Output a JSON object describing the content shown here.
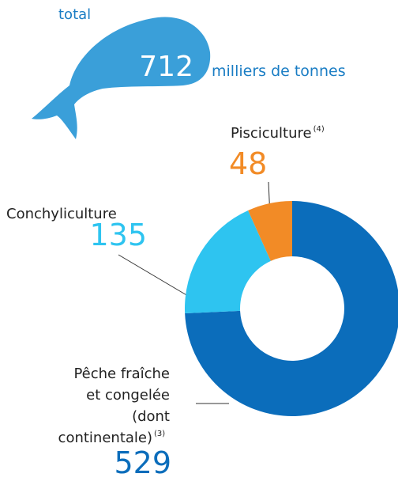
{
  "chart_data": {
    "type": "donut",
    "title": "total",
    "total": 712,
    "unit": "milliers de tonnes",
    "segments": [
      {
        "name": [
          "Pêche fraîche",
          "et congelée",
          "(dont",
          "continentale)"
        ],
        "note": "(3)",
        "value": 529,
        "color": "#0b6dbb"
      },
      {
        "name": [
          "Conchyliculture"
        ],
        "value": 135,
        "color": "#2ec4f0"
      },
      {
        "name": [
          "Pisciculture"
        ],
        "note": "(4)",
        "value": 48,
        "color": "#f28b26"
      }
    ]
  }
}
